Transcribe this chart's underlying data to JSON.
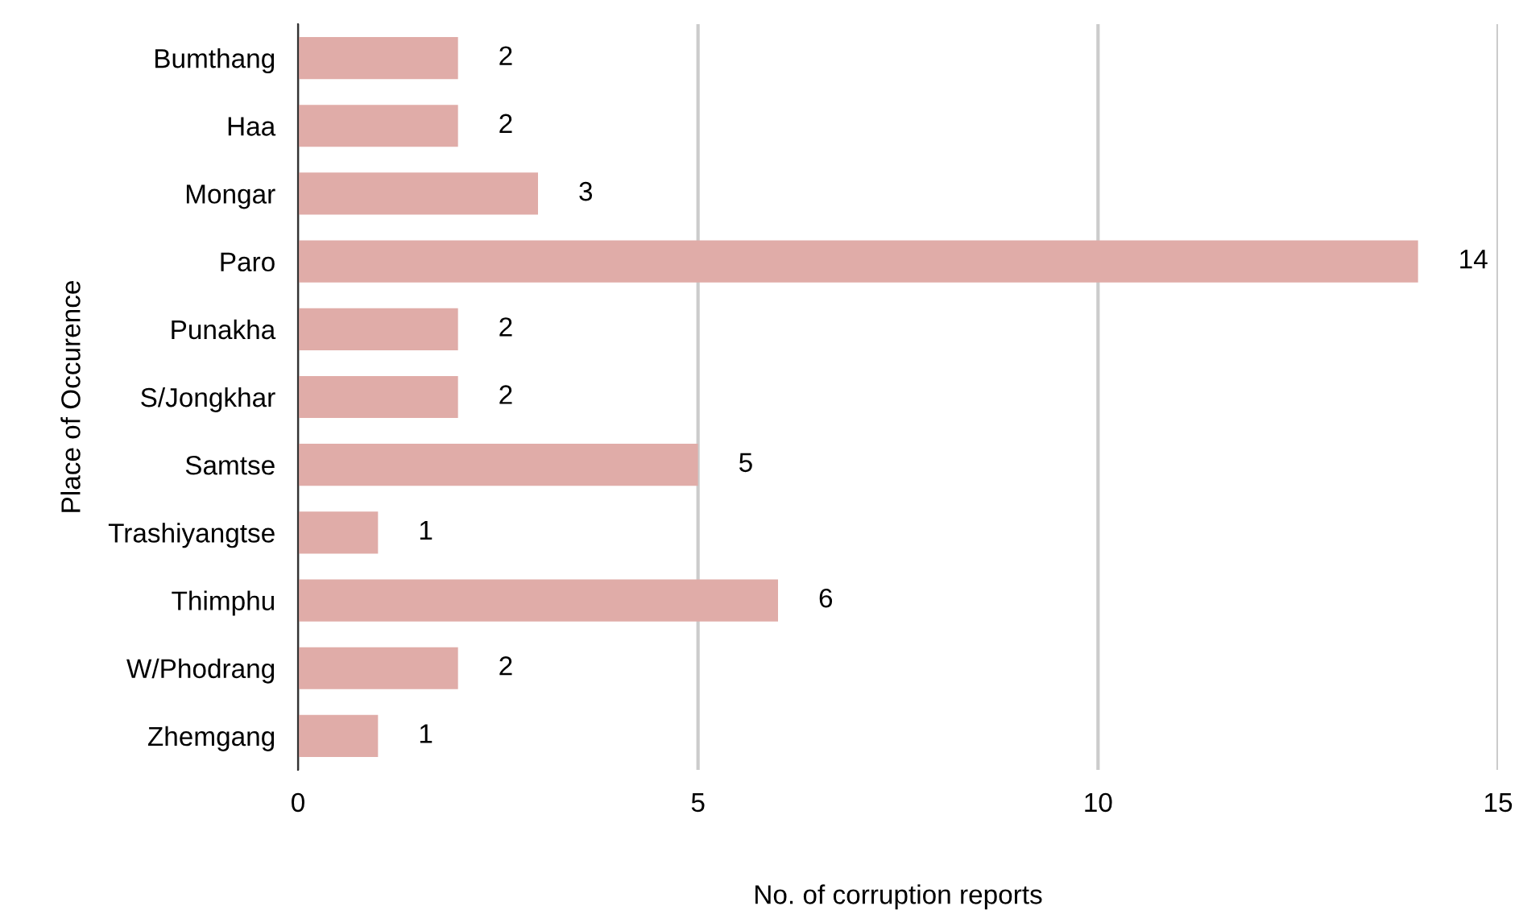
{
  "chart_data": {
    "type": "bar",
    "orientation": "horizontal",
    "xlabel": "No. of corruption reports",
    "ylabel": "Place of Occurence",
    "categories": [
      "Bumthang",
      "Haa",
      "Mongar",
      "Paro",
      "Punakha",
      "S/Jongkhar",
      "Samtse",
      "Trashiyangtse",
      "Thimphu",
      "W/Phodrang",
      "Zhemgang"
    ],
    "values": [
      2,
      2,
      3,
      14,
      2,
      2,
      5,
      1,
      6,
      2,
      1
    ],
    "color": "#e0aca8",
    "xlim": [
      0,
      15
    ],
    "xticks": [
      0,
      5,
      10,
      15
    ],
    "grid": "x",
    "data_labels": true,
    "legend": false
  }
}
